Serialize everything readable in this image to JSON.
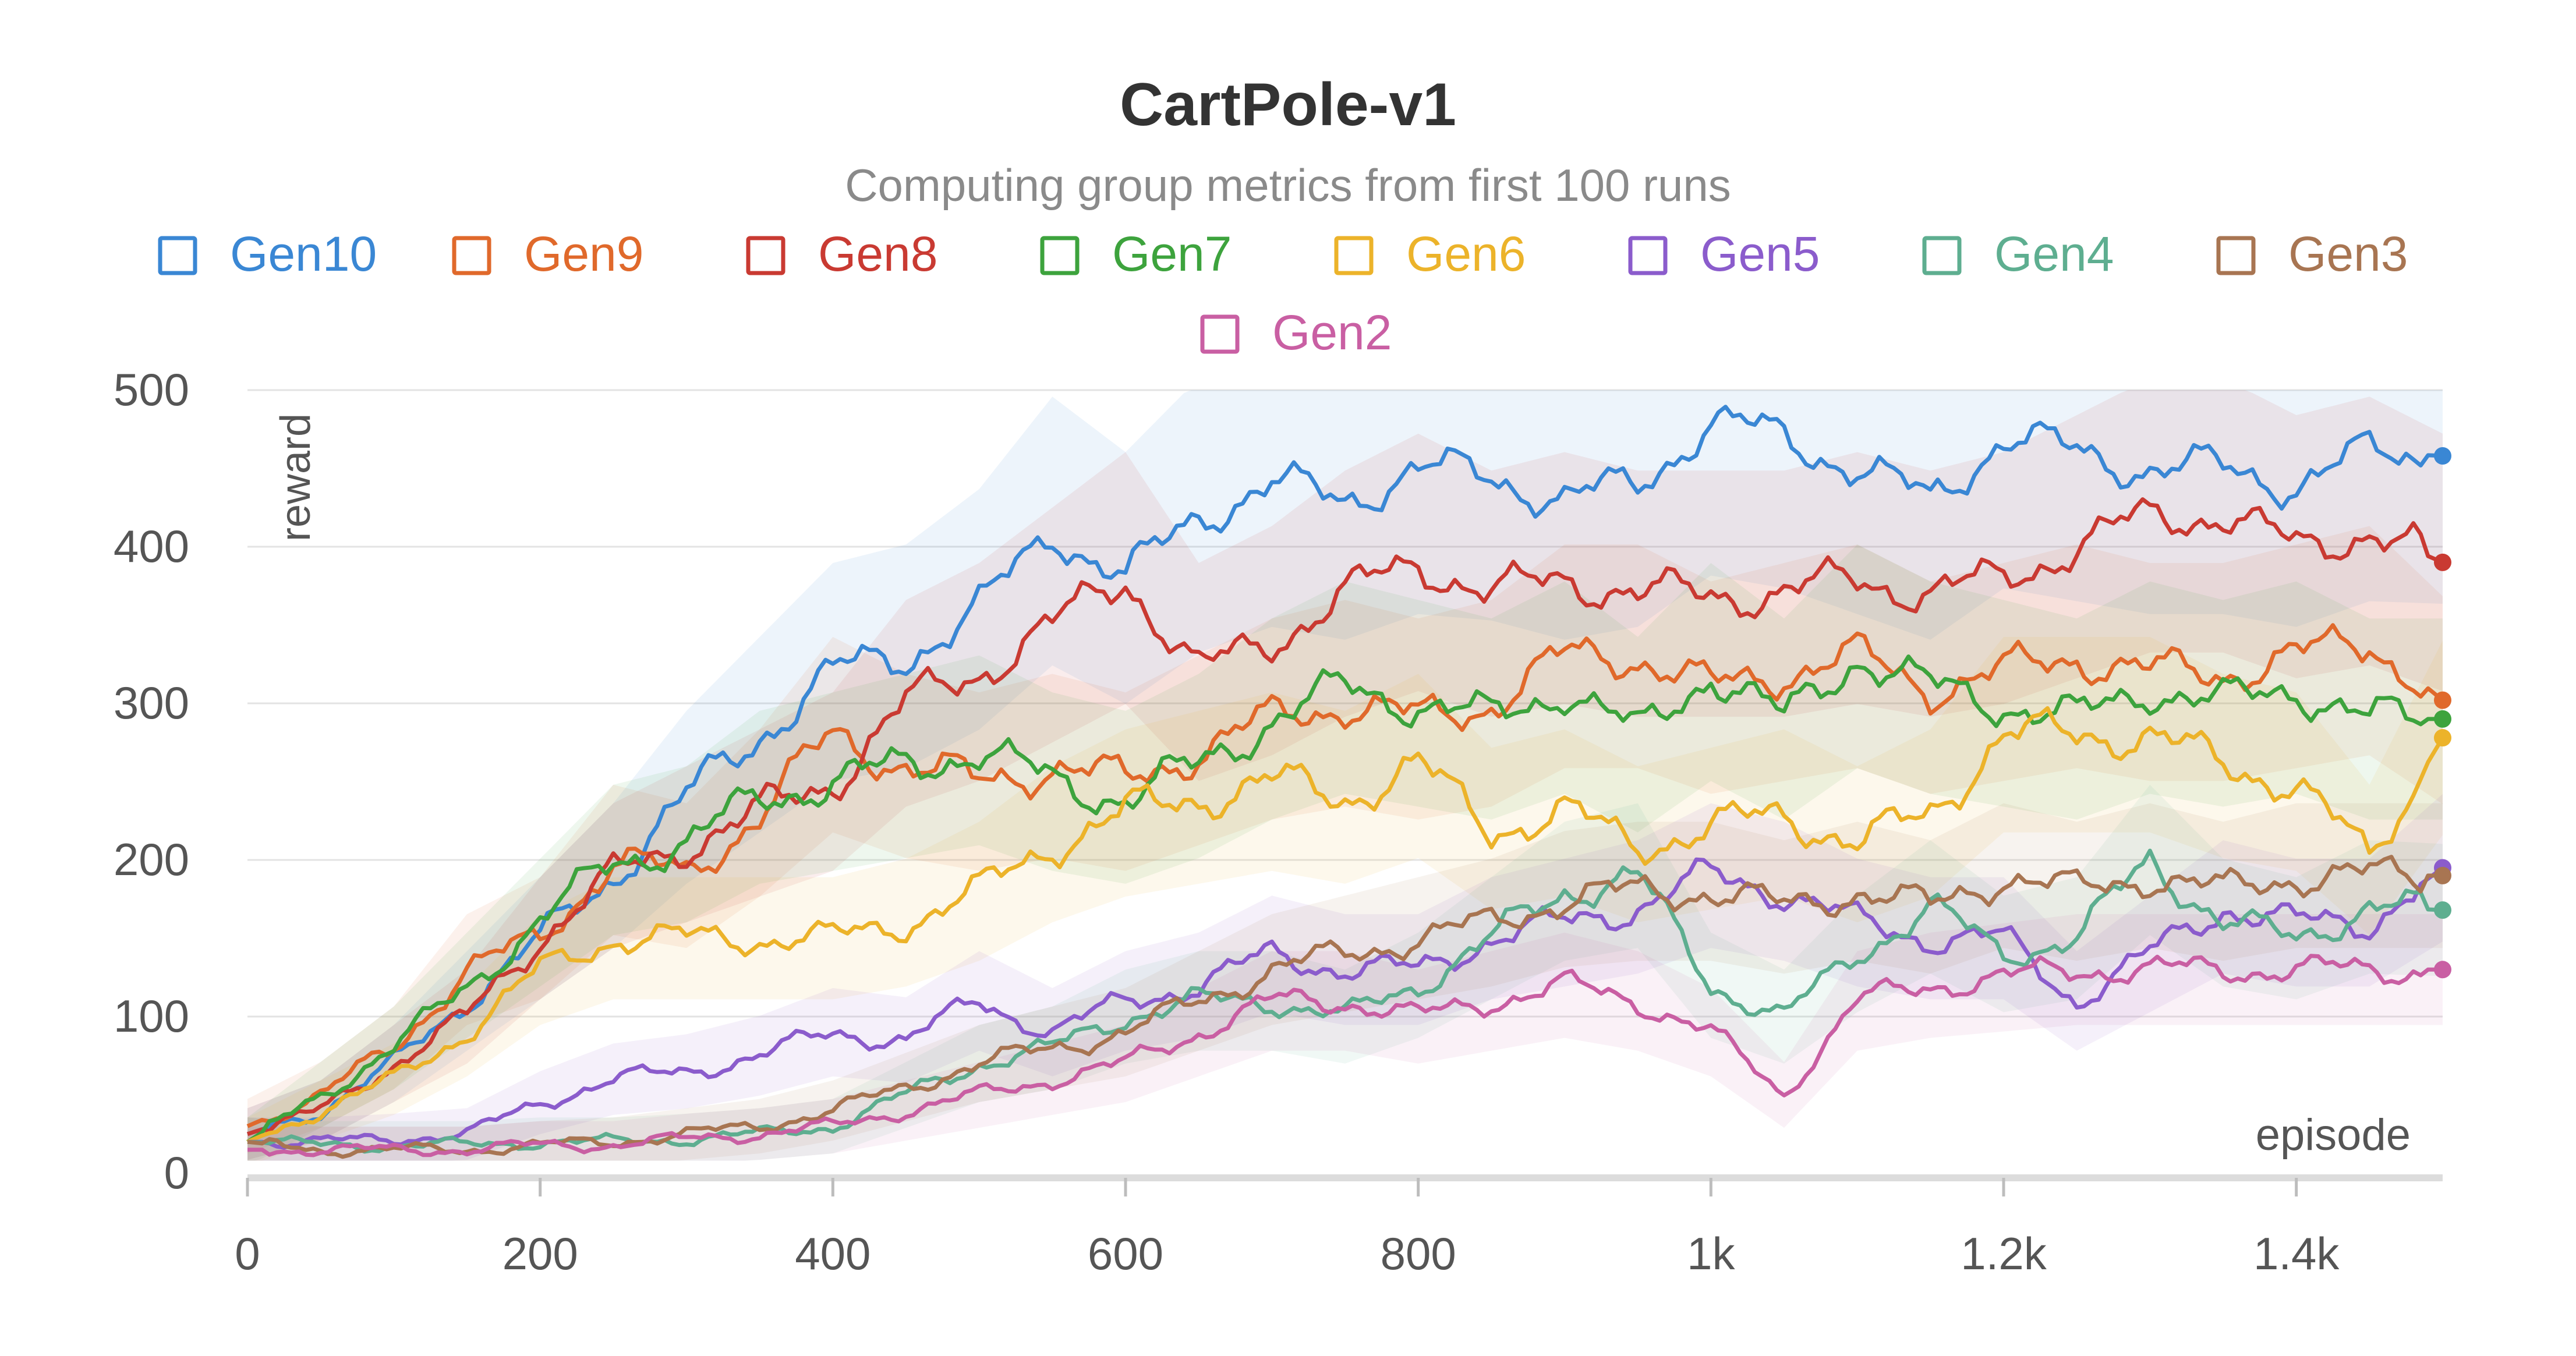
{
  "chart_data": {
    "type": "line",
    "title": "CartPole-v1",
    "subtitle": "Computing group metrics from first 100 runs",
    "xlabel": "episode",
    "ylabel": "reward",
    "xlim": [
      0,
      1500
    ],
    "ylim": [
      0,
      500
    ],
    "x_ticks": [
      {
        "value": 0,
        "label": "0"
      },
      {
        "value": 200,
        "label": "200"
      },
      {
        "value": 400,
        "label": "400"
      },
      {
        "value": 600,
        "label": "600"
      },
      {
        "value": 800,
        "label": "800"
      },
      {
        "value": 1000,
        "label": "1k"
      },
      {
        "value": 1200,
        "label": "1.2k"
      },
      {
        "value": 1400,
        "label": "1.4k"
      }
    ],
    "y_ticks": [
      {
        "value": 0,
        "label": "0"
      },
      {
        "value": 100,
        "label": "100"
      },
      {
        "value": 200,
        "label": "200"
      },
      {
        "value": 300,
        "label": "300"
      },
      {
        "value": 400,
        "label": "400"
      },
      {
        "value": 500,
        "label": "500"
      }
    ],
    "grid": true,
    "legend_position": "top",
    "x": [
      0,
      50,
      100,
      150,
      200,
      250,
      300,
      350,
      400,
      450,
      500,
      550,
      600,
      650,
      700,
      750,
      800,
      850,
      900,
      950,
      1000,
      1050,
      1100,
      1150,
      1200,
      1250,
      1300,
      1350,
      1400,
      1450,
      1500
    ],
    "series": [
      {
        "name": "Gen10",
        "color": "#3a87d4",
        "values": [
          25,
          40,
          70,
          110,
          150,
          190,
          240,
          280,
          320,
          330,
          360,
          410,
          380,
          420,
          440,
          430,
          450,
          445,
          430,
          440,
          480,
          470,
          450,
          430,
          470,
          460,
          450,
          450,
          440,
          460,
          458
        ]
      },
      {
        "name": "Gen9",
        "color": "#e0692b",
        "values": [
          30,
          50,
          80,
          130,
          150,
          200,
          190,
          230,
          280,
          260,
          250,
          260,
          250,
          270,
          290,
          300,
          290,
          300,
          330,
          330,
          310,
          320,
          330,
          310,
          320,
          330,
          320,
          320,
          330,
          340,
          302
        ]
      },
      {
        "name": "Gen8",
        "color": "#c93a32",
        "values": [
          25,
          40,
          70,
          100,
          150,
          190,
          210,
          230,
          250,
          300,
          320,
          350,
          380,
          320,
          340,
          370,
          390,
          370,
          380,
          370,
          370,
          370,
          380,
          370,
          380,
          400,
          420,
          420,
          400,
          410,
          390
        ]
      },
      {
        "name": "Gen7",
        "color": "#3da33d",
        "values": [
          20,
          50,
          80,
          120,
          160,
          200,
          210,
          240,
          250,
          260,
          270,
          250,
          240,
          260,
          290,
          310,
          300,
          290,
          310,
          280,
          320,
          290,
          330,
          310,
          300,
          290,
          310,
          300,
          310,
          290,
          290
        ]
      },
      {
        "name": "Gen6",
        "color": "#ecb32a",
        "values": [
          20,
          40,
          60,
          90,
          130,
          150,
          150,
          150,
          150,
          160,
          180,
          210,
          230,
          240,
          250,
          240,
          260,
          220,
          230,
          210,
          220,
          230,
          210,
          230,
          280,
          280,
          280,
          260,
          250,
          200,
          278
        ]
      },
      {
        "name": "Gen5",
        "color": "#8b5ccc",
        "values": [
          20,
          20,
          22,
          25,
          45,
          60,
          65,
          75,
          90,
          85,
          110,
          90,
          110,
          120,
          140,
          130,
          130,
          150,
          160,
          170,
          190,
          180,
          160,
          150,
          150,
          110,
          140,
          170,
          160,
          160,
          195
        ]
      },
      {
        "name": "Gen4",
        "color": "#5eae90",
        "values": [
          20,
          18,
          18,
          18,
          20,
          20,
          22,
          25,
          30,
          50,
          70,
          80,
          100,
          110,
          110,
          100,
          120,
          150,
          180,
          190,
          120,
          100,
          140,
          170,
          140,
          150,
          200,
          160,
          150,
          170,
          168
        ]
      },
      {
        "name": "Gen3",
        "color": "#a87552",
        "values": [
          20,
          15,
          15,
          15,
          18,
          20,
          25,
          30,
          40,
          55,
          70,
          80,
          90,
          110,
          130,
          140,
          150,
          160,
          175,
          180,
          180,
          170,
          180,
          170,
          190,
          180,
          190,
          180,
          190,
          190,
          190
        ]
      },
      {
        "name": "Gen2",
        "color": "#c95fa3",
        "values": [
          15,
          15,
          15,
          15,
          18,
          18,
          22,
          25,
          30,
          40,
          50,
          60,
          70,
          90,
          110,
          110,
          100,
          110,
          120,
          110,
          90,
          50,
          110,
          120,
          125,
          130,
          130,
          130,
          130,
          130,
          130
        ]
      }
    ]
  }
}
